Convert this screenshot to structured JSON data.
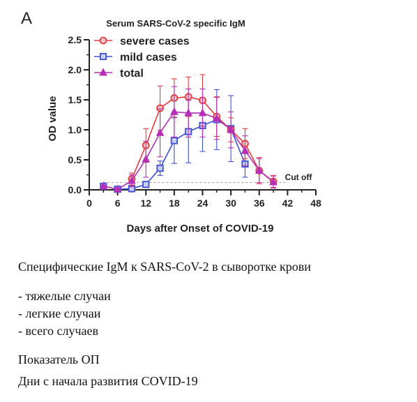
{
  "panel_letter": "A",
  "chart_data": {
    "type": "line",
    "title": "Serum SARS-CoV-2 specific IgM",
    "xlabel": "Days after Onset of COVID-19",
    "ylabel": "OD value",
    "xlim": [
      0,
      48
    ],
    "ylim": [
      0,
      2.5
    ],
    "xticks": [
      0,
      6,
      12,
      18,
      24,
      30,
      36,
      42,
      48
    ],
    "yticks": [
      "0.0",
      "0.5",
      "1.0",
      "1.5",
      "2.0",
      "2.5"
    ],
    "grid": false,
    "legend_position": "top-left",
    "annotation": "Cut off",
    "cutoff": 0.12,
    "series": [
      {
        "name": "severe cases",
        "color": "#e8393f",
        "marker": "circle",
        "points": [
          {
            "x": 9,
            "y": 0.18,
            "err": 0.1
          },
          {
            "x": 12,
            "y": 0.74,
            "err": 0.28
          },
          {
            "x": 15,
            "y": 1.36,
            "err": 0.37
          },
          {
            "x": 18,
            "y": 1.53,
            "err": 0.32
          },
          {
            "x": 21,
            "y": 1.55,
            "err": 0.33
          },
          {
            "x": 24,
            "y": 1.49,
            "err": 0.43
          },
          {
            "x": 27,
            "y": 1.22,
            "err": 0.33
          },
          {
            "x": 30,
            "y": 1.0,
            "err": 0.2
          },
          {
            "x": 33,
            "y": 0.77,
            "err": 0.25
          },
          {
            "x": 36,
            "y": 0.32,
            "err": 0.22
          },
          {
            "x": 39,
            "y": 0.14,
            "err": 0.1
          }
        ]
      },
      {
        "name": "mild cases",
        "color": "#3e4fd6",
        "marker": "square",
        "points": [
          {
            "x": 3,
            "y": 0.06,
            "err": 0.02
          },
          {
            "x": 6,
            "y": 0.01,
            "err": 0.02
          },
          {
            "x": 9,
            "y": 0.02,
            "err": 0.02
          },
          {
            "x": 12,
            "y": 0.09,
            "err": 0.05
          },
          {
            "x": 15,
            "y": 0.36,
            "err": 0.12
          },
          {
            "x": 18,
            "y": 0.82,
            "err": 0.38
          },
          {
            "x": 21,
            "y": 0.97,
            "err": 0.52
          },
          {
            "x": 24,
            "y": 1.07,
            "err": 0.43
          },
          {
            "x": 27,
            "y": 1.17,
            "err": 0.5
          },
          {
            "x": 30,
            "y": 1.02,
            "err": 0.55
          },
          {
            "x": 33,
            "y": 0.43,
            "err": 0.22
          }
        ]
      },
      {
        "name": "total",
        "color": "#b52fb8",
        "marker": "triangle",
        "points": [
          {
            "x": 3,
            "y": 0.06,
            "err": 0.02
          },
          {
            "x": 6,
            "y": 0.01,
            "err": 0.02
          },
          {
            "x": 9,
            "y": 0.15,
            "err": 0.1
          },
          {
            "x": 12,
            "y": 0.51,
            "err": 0.3
          },
          {
            "x": 15,
            "y": 0.95,
            "err": 0.4
          },
          {
            "x": 18,
            "y": 1.3,
            "err": 0.42
          },
          {
            "x": 21,
            "y": 1.28,
            "err": 0.4
          },
          {
            "x": 24,
            "y": 1.28,
            "err": 0.4
          },
          {
            "x": 27,
            "y": 1.19,
            "err": 0.35
          },
          {
            "x": 30,
            "y": 1.0,
            "err": 0.3
          },
          {
            "x": 33,
            "y": 0.65,
            "err": 0.25
          },
          {
            "x": 36,
            "y": 0.32,
            "err": 0.2
          },
          {
            "x": 39,
            "y": 0.13,
            "err": 0.1
          }
        ]
      }
    ]
  },
  "caption": {
    "title": "Специфические IgM к SARS-CoV-2 в сыворотке крови",
    "legend_items": [
      "- тяжелые случаи",
      "- легкие случаи",
      "- всего случаев"
    ],
    "ylabel": "Показатель ОП",
    "xlabel": "Дни с начала развития COVID-19"
  }
}
